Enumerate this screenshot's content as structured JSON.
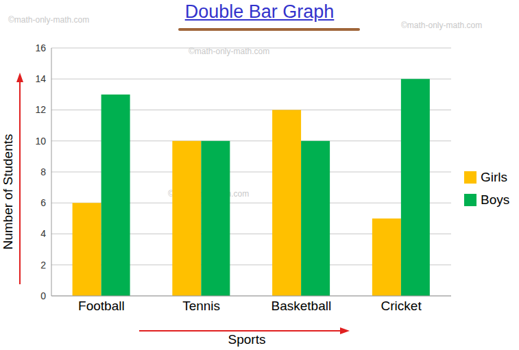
{
  "chart_data": {
    "type": "bar",
    "title": "Double Bar Graph",
    "x_label": "Sports",
    "y_label": "Number of Students",
    "categories": [
      "Football",
      "Tennis",
      "Basketball",
      "Cricket"
    ],
    "series": [
      {
        "name": "Girls",
        "color": "#ffc000",
        "values": [
          6,
          10,
          12,
          5
        ]
      },
      {
        "name": "Boys",
        "color": "#00b050",
        "values": [
          13,
          10,
          10,
          14
        ]
      }
    ],
    "ylim": [
      0,
      16
    ],
    "yticks": [
      0,
      2,
      4,
      6,
      8,
      10,
      12,
      14,
      16
    ],
    "grid": true,
    "legend": "right",
    "annotations": [
      "©math-only-math.com"
    ]
  }
}
